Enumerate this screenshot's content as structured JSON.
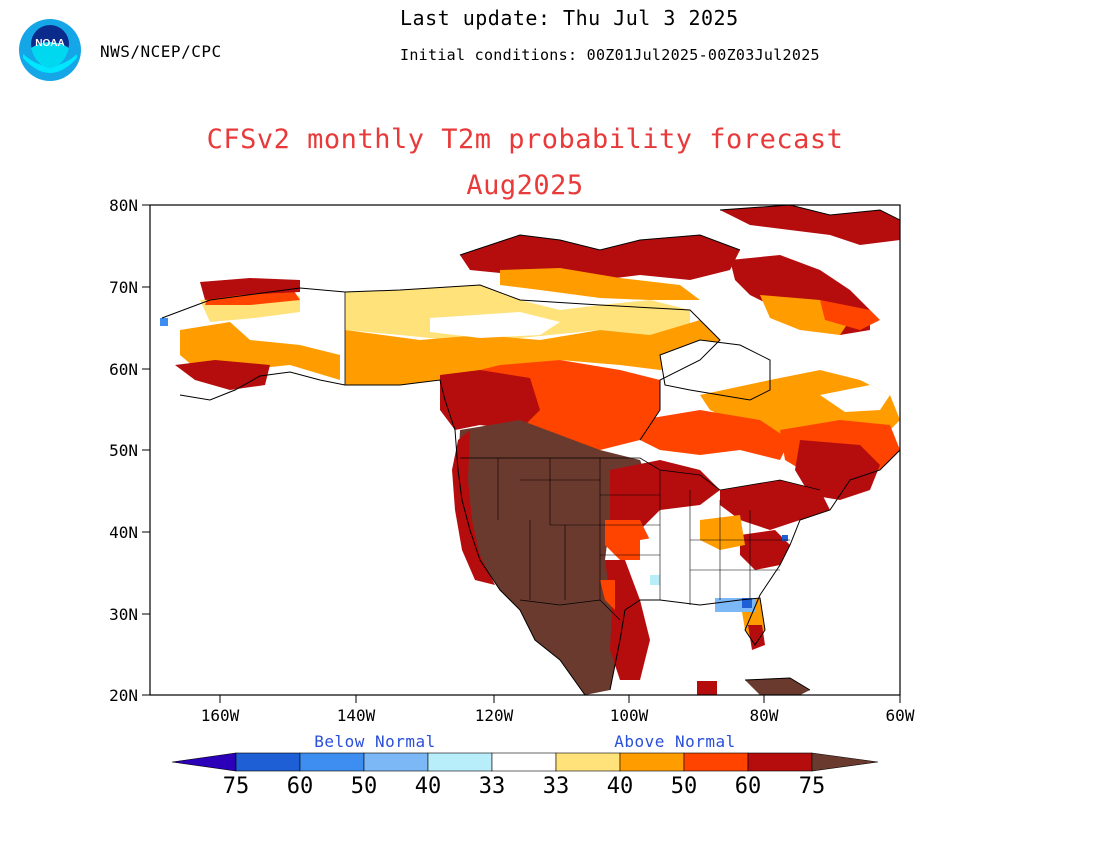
{
  "header": {
    "org": "NWS/NCEP/CPC",
    "last_update": "Last update: Thu Jul 3 2025",
    "initial_conditions": "Initial conditions: 00Z01Jul2025-00Z03Jul2025",
    "logo_text": "NOAA"
  },
  "title": "CFSv2 monthly T2m probability forecast",
  "subtitle": "Aug2025",
  "axes": {
    "lat_ticks": [
      "80N",
      "70N",
      "60N",
      "50N",
      "40N",
      "30N",
      "20N"
    ],
    "lon_ticks": [
      "160W",
      "140W",
      "120W",
      "100W",
      "80W",
      "60W"
    ]
  },
  "colorbar": {
    "below_label": "Below Normal",
    "above_label": "Above Normal",
    "labels": [
      "75",
      "60",
      "50",
      "40",
      "33",
      "33",
      "40",
      "50",
      "60",
      "75"
    ],
    "colors": {
      "below_75": "#2b00b8",
      "below_60": "#1f5fd6",
      "below_50": "#3d8ef0",
      "below_40": "#7cb8f5",
      "below_33": "#b8eefa",
      "normal": "#ffffff",
      "above_33": "#ffe27a",
      "above_40": "#ff9d00",
      "above_50": "#ff4400",
      "above_60": "#b50d0d",
      "above_75": "#6b3a2e"
    }
  }
}
